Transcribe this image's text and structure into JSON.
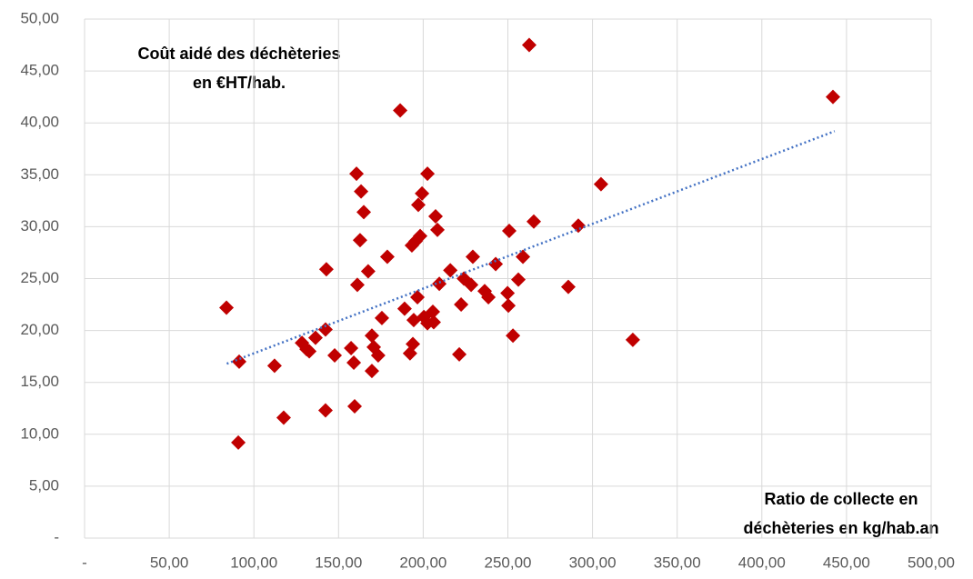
{
  "chart_data": {
    "type": "scatter",
    "y_title_lines": [
      "Coût aidé des déchèteries",
      "en €HT/hab."
    ],
    "x_title_lines": [
      "Ratio de collecte en",
      "déchèteries en kg/hab.an"
    ],
    "color": "#c00000",
    "grid": true,
    "xlim": [
      0,
      500
    ],
    "ylim": [
      0,
      50
    ],
    "xticks": [
      {
        "value": 0,
        "label": "-"
      },
      {
        "value": 50,
        "label": "50,00"
      },
      {
        "value": 100,
        "label": "100,00"
      },
      {
        "value": 150,
        "label": "150,00"
      },
      {
        "value": 200,
        "label": "200,00"
      },
      {
        "value": 250,
        "label": "250,00"
      },
      {
        "value": 300,
        "label": "300,00"
      },
      {
        "value": 350,
        "label": "350,00"
      },
      {
        "value": 400,
        "label": "400,00"
      },
      {
        "value": 450,
        "label": "450,00"
      },
      {
        "value": 500,
        "label": "500,00"
      }
    ],
    "yticks": [
      {
        "value": 0,
        "label": "-"
      },
      {
        "value": 5,
        "label": "5,00"
      },
      {
        "value": 10,
        "label": "10,00"
      },
      {
        "value": 15,
        "label": "15,00"
      },
      {
        "value": 20,
        "label": "20,00"
      },
      {
        "value": 25,
        "label": "25,00"
      },
      {
        "value": 30,
        "label": "30,00"
      },
      {
        "value": 35,
        "label": "35,00"
      },
      {
        "value": 40,
        "label": "40,00"
      },
      {
        "value": 45,
        "label": "45,00"
      },
      {
        "value": 50,
        "label": "50,00"
      }
    ],
    "x": [
      83.8,
      91.3,
      90.8,
      112.2,
      117.6,
      128.4,
      131.1,
      132.7,
      136.4,
      142.3,
      142.8,
      147.7,
      142.3,
      157.4,
      159.0,
      159.5,
      161.1,
      162.7,
      160.6,
      163.3,
      164.9,
      167.5,
      169.7,
      170.8,
      169.7,
      173.4,
      175.6,
      178.8,
      186.4,
      189.0,
      192.2,
      193.9,
      193.3,
      194.4,
      196.6,
      195.5,
      197.1,
      198.2,
      199.3,
      200.4,
      202.5,
      202.5,
      205.7,
      206.2,
      207.3,
      208.4,
      209.5,
      216.0,
      221.3,
      222.4,
      224.0,
      228.3,
      229.3,
      236.3,
      238.5,
      242.8,
      249.8,
      250.3,
      250.8,
      253.0,
      256.2,
      258.9,
      262.6,
      265.3,
      285.7,
      291.6,
      305.0,
      323.8,
      442.0
    ],
    "values": [
      22.2,
      17.0,
      9.2,
      16.6,
      11.6,
      18.8,
      18.2,
      18.0,
      19.3,
      20.1,
      25.9,
      17.6,
      12.3,
      18.3,
      16.9,
      12.7,
      24.4,
      28.7,
      35.1,
      33.4,
      31.4,
      25.7,
      19.5,
      18.4,
      16.1,
      17.6,
      21.2,
      27.1,
      41.2,
      22.1,
      17.8,
      18.7,
      28.2,
      21.0,
      23.2,
      28.6,
      32.1,
      29.1,
      33.2,
      21.3,
      35.1,
      20.7,
      21.8,
      20.8,
      31.0,
      29.7,
      24.5,
      25.8,
      17.7,
      22.5,
      25.0,
      24.4,
      27.1,
      23.8,
      23.2,
      26.4,
      23.6,
      22.4,
      29.6,
      19.5,
      24.9,
      27.1,
      47.5,
      30.5,
      24.2,
      30.1,
      34.1,
      19.1,
      42.5
    ],
    "trendline": {
      "color": "#4472c4",
      "x": [
        84,
        443
      ],
      "values": [
        16.8,
        39.2
      ]
    }
  }
}
